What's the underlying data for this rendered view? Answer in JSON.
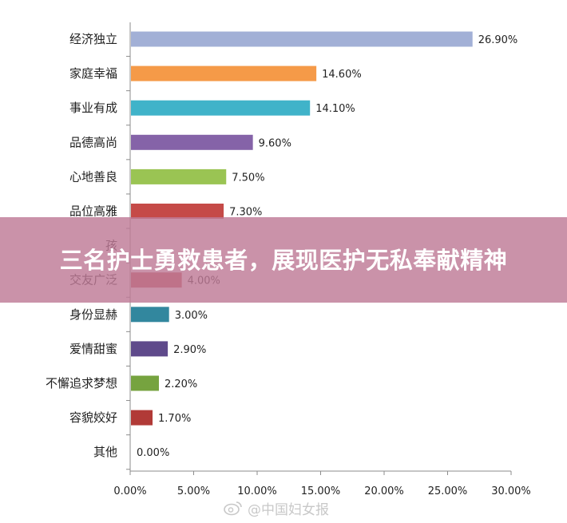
{
  "chart_data": {
    "type": "bar",
    "orientation": "horizontal",
    "categories": [
      "经济独立",
      "家庭幸福",
      "事业有成",
      "品德高尚",
      "心地善良",
      "品位高雅",
      "孩",
      "交友广泛",
      "身份显赫",
      "爱情甜蜜",
      "不懈追求梦想",
      "容貌姣好",
      "其他"
    ],
    "values": [
      26.9,
      14.6,
      14.1,
      9.6,
      7.5,
      7.3,
      null,
      4.0,
      3.0,
      2.9,
      2.2,
      1.7,
      0.0
    ],
    "value_labels": [
      "26.90%",
      "14.60%",
      "14.10%",
      "9.60%",
      "7.50%",
      "7.30%",
      "",
      "4.00%",
      "3.00%",
      "2.90%",
      "2.20%",
      "1.70%",
      "0.00%"
    ],
    "colors": [
      "#a2b0d6",
      "#f59a48",
      "#40b3c9",
      "#8563a8",
      "#9ac453",
      "#c54a48",
      "#4f81bd",
      "#c0504d",
      "#32879e",
      "#5f4a8b",
      "#76a33f",
      "#b13a37",
      "#4f81bd"
    ],
    "x_ticks": [
      "0.00%",
      "5.00%",
      "10.00%",
      "15.00%",
      "20.00%",
      "25.00%",
      "30.00%"
    ],
    "xlim": [
      0,
      30
    ],
    "grid": false,
    "legend": "none"
  },
  "banner": {
    "title": "三名护士勇救患者，展现医护无私奉献精神"
  },
  "watermark": {
    "text": "@中国妇女报",
    "icon": "weibo-icon"
  }
}
